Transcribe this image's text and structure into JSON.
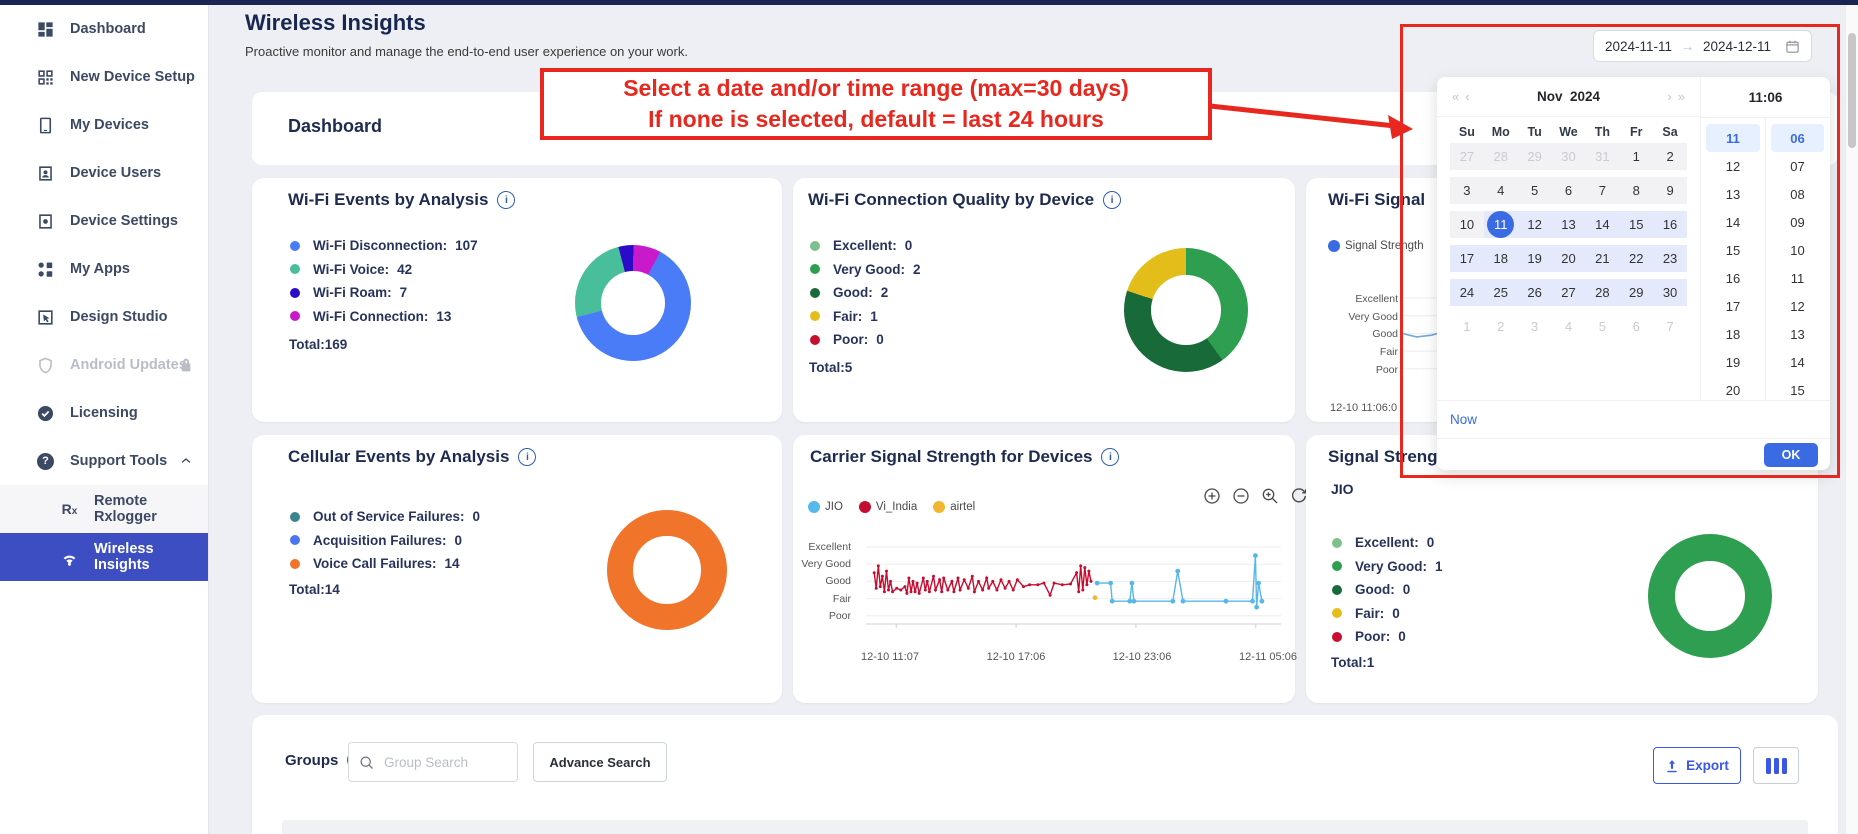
{
  "header": {
    "title": "Wireless Insights",
    "subtitle": "Proactive monitor and manage the end-to-end user experience on your work.",
    "section_title": "Dashboard"
  },
  "sidebar": {
    "items": [
      {
        "label": "Dashboard",
        "icon": "dashboard-icon"
      },
      {
        "label": "New Device Setup",
        "icon": "qr-code-icon"
      },
      {
        "label": "My Devices",
        "icon": "phone-icon"
      },
      {
        "label": "Device Users",
        "icon": "user-card-icon"
      },
      {
        "label": "Device Settings",
        "icon": "device-gear-icon"
      },
      {
        "label": "My Apps",
        "icon": "apps-icon"
      },
      {
        "label": "Design Studio",
        "icon": "design-cursor-icon"
      },
      {
        "label": "Android Updates",
        "icon": "shield-icon",
        "disabled": true,
        "lock": true
      },
      {
        "label": "Licensing",
        "icon": "license-badge-icon"
      },
      {
        "label": "Support Tools",
        "icon": "help-circle-icon",
        "expanded": true
      },
      {
        "label": "Remote Rxlogger",
        "icon": "rx-icon",
        "child": true
      },
      {
        "label": "Wireless Insights",
        "icon": "wifi-icon",
        "child": true,
        "selected": true
      }
    ]
  },
  "annotation": {
    "line1": "Select a date and/or time range (max=30 days)",
    "line2": "If none is selected, default = last 24 hours"
  },
  "date_input": {
    "start": "2024-11-11",
    "arrow": "→",
    "end": "2024-12-11"
  },
  "date_picker": {
    "nav": {
      "prev_year": "«",
      "prev_month": "‹",
      "next_month": "›",
      "next_year": "»"
    },
    "month": "Nov",
    "year": "2024",
    "time_header": "11:06",
    "day_names": [
      "Su",
      "Mo",
      "Tu",
      "We",
      "Th",
      "Fr",
      "Sa"
    ],
    "weeks": [
      [
        {
          "d": "27",
          "s": "prev"
        },
        {
          "d": "28",
          "s": "prev"
        },
        {
          "d": "29",
          "s": "prev"
        },
        {
          "d": "30",
          "s": "prev"
        },
        {
          "d": "31",
          "s": "prev"
        },
        {
          "d": "1",
          "s": "gray"
        },
        {
          "d": "2",
          "s": "gray"
        }
      ],
      [
        {
          "d": "3",
          "s": "gray"
        },
        {
          "d": "4",
          "s": "gray"
        },
        {
          "d": "5",
          "s": "gray"
        },
        {
          "d": "6",
          "s": "gray"
        },
        {
          "d": "7",
          "s": "gray"
        },
        {
          "d": "8",
          "s": "gray"
        },
        {
          "d": "9",
          "s": "gray"
        }
      ],
      [
        {
          "d": "10",
          "s": "gray"
        },
        {
          "d": "11",
          "s": "sel"
        },
        {
          "d": "12",
          "s": "range"
        },
        {
          "d": "13",
          "s": "range"
        },
        {
          "d": "14",
          "s": "range"
        },
        {
          "d": "15",
          "s": "range"
        },
        {
          "d": "16",
          "s": "range"
        }
      ],
      [
        {
          "d": "17",
          "s": "range"
        },
        {
          "d": "18",
          "s": "range"
        },
        {
          "d": "19",
          "s": "range"
        },
        {
          "d": "20",
          "s": "range"
        },
        {
          "d": "21",
          "s": "range"
        },
        {
          "d": "22",
          "s": "range"
        },
        {
          "d": "23",
          "s": "range"
        }
      ],
      [
        {
          "d": "24",
          "s": "range"
        },
        {
          "d": "25",
          "s": "range"
        },
        {
          "d": "26",
          "s": "range"
        },
        {
          "d": "27",
          "s": "range"
        },
        {
          "d": "28",
          "s": "range"
        },
        {
          "d": "29",
          "s": "range"
        },
        {
          "d": "30",
          "s": "range"
        }
      ],
      [
        {
          "d": "1",
          "s": "next"
        },
        {
          "d": "2",
          "s": "next"
        },
        {
          "d": "3",
          "s": "next"
        },
        {
          "d": "4",
          "s": "next"
        },
        {
          "d": "5",
          "s": "next"
        },
        {
          "d": "6",
          "s": "next"
        },
        {
          "d": "7",
          "s": "next"
        }
      ]
    ],
    "hours": [
      "11",
      "12",
      "13",
      "14",
      "15",
      "16",
      "17",
      "18",
      "19",
      "20"
    ],
    "minutes": [
      "06",
      "07",
      "08",
      "09",
      "10",
      "11",
      "12",
      "13",
      "14",
      "15"
    ],
    "selected_hour": "11",
    "selected_minute": "06",
    "now_label": "Now",
    "ok_label": "OK"
  },
  "groups": {
    "title": "Groups",
    "search_placeholder": "Group Search",
    "advance_button_label": "Advance Search",
    "export_button_label": "Export"
  },
  "chart_data": [
    {
      "id": "wifi-events-by-analysis",
      "type": "pie",
      "donut": true,
      "title": "Wi-Fi Events by Analysis",
      "total": 169,
      "total_label": "Total:169",
      "rotation": 28,
      "segments": [
        {
          "label": "Wi-Fi Disconnection",
          "value": 107,
          "color": "#4a7cf7"
        },
        {
          "label": "Wi-Fi Voice",
          "value": 42,
          "color": "#49be9b"
        },
        {
          "label": "Wi-Fi Roam",
          "value": 7,
          "color": "#2b0ac9"
        },
        {
          "label": "Wi-Fi Connection",
          "value": 13,
          "color": "#c81acb"
        }
      ]
    },
    {
      "id": "wifi-connection-quality-by-device",
      "type": "pie",
      "donut": true,
      "title": "Wi-Fi Connection Quality by Device",
      "total": 5,
      "total_label": "Total:5",
      "rotation": 0,
      "segments": [
        {
          "label": "Excellent",
          "value": 0,
          "color": "#7cc08b"
        },
        {
          "label": "Very Good",
          "value": 2,
          "color": "#2e9e50"
        },
        {
          "label": "Good",
          "value": 2,
          "color": "#186a38"
        },
        {
          "label": "Fair",
          "value": 1,
          "color": "#e3be1a"
        },
        {
          "label": "Poor",
          "value": 0,
          "color": "#c8102e"
        }
      ]
    },
    {
      "id": "wifi-signal",
      "type": "line",
      "title": "Wi-Fi Signal",
      "legend": [
        {
          "label": "Signal Strength",
          "color": "#3a6be2"
        }
      ],
      "y_ticks": [
        "Excellent",
        "Very Good",
        "Good",
        "Fair",
        "Poor"
      ],
      "x_ticks": [
        "12-10 11:06:0"
      ],
      "series": [
        {
          "name": "Signal Strength",
          "color": "#6fa8dc",
          "points": [
            [
              0,
              3.0
            ],
            [
              0.35,
              2.8
            ],
            [
              0.7,
              2.9
            ],
            [
              1,
              3.1
            ]
          ]
        }
      ]
    },
    {
      "id": "cellular-events-by-analysis",
      "type": "pie",
      "donut": true,
      "title": "Cellular Events by Analysis",
      "total": 14,
      "total_label": "Total:14",
      "rotation": 0,
      "segments": [
        {
          "label": "Out of Service Failures",
          "value": 0,
          "color": "#39868f"
        },
        {
          "label": "Acquisition Failures",
          "value": 0,
          "color": "#4b74f0"
        },
        {
          "label": "Voice Call Failures",
          "value": 14,
          "color": "#f0752b"
        }
      ]
    },
    {
      "id": "carrier-signal-strength-for-devices",
      "type": "line",
      "title": "Carrier Signal Strength for Devices",
      "legend": [
        {
          "label": "JIO",
          "color": "#56b8e6"
        },
        {
          "label": "Vi_India",
          "color": "#c60c30"
        },
        {
          "label": "airtel",
          "color": "#f3b72f"
        }
      ],
      "y_ticks": [
        "Excellent",
        "Very Good",
        "Good",
        "Fair",
        "Poor"
      ],
      "x_ticks": [
        "12-10 11:07",
        "12-10 17:06",
        "12-10 23:06",
        "12-11 05:06"
      ],
      "series": [
        {
          "name": "Vi_India",
          "color": "#c60c30",
          "points": [
            [
              0.02,
              3.5
            ],
            [
              0.025,
              2.6
            ],
            [
              0.03,
              3.9
            ],
            [
              0.035,
              2.7
            ],
            [
              0.04,
              3.3
            ],
            [
              0.045,
              2.4
            ],
            [
              0.05,
              3.6
            ],
            [
              0.055,
              2.5
            ],
            [
              0.06,
              3.0
            ],
            [
              0.065,
              2.4
            ],
            [
              0.075,
              2.6
            ],
            [
              0.085,
              2.5
            ],
            [
              0.095,
              2.7
            ],
            [
              0.1,
              2.3
            ],
            [
              0.105,
              3.2
            ],
            [
              0.11,
              2.4
            ],
            [
              0.115,
              3.0
            ],
            [
              0.12,
              2.4
            ],
            [
              0.125,
              2.9
            ],
            [
              0.13,
              2.3
            ],
            [
              0.14,
              3.2
            ],
            [
              0.145,
              2.5
            ],
            [
              0.15,
              3.0
            ],
            [
              0.155,
              2.4
            ],
            [
              0.165,
              3.3
            ],
            [
              0.17,
              2.5
            ],
            [
              0.18,
              3.1
            ],
            [
              0.185,
              2.4
            ],
            [
              0.19,
              3.2
            ],
            [
              0.2,
              2.5
            ],
            [
              0.21,
              3.0
            ],
            [
              0.215,
              2.4
            ],
            [
              0.225,
              3.2
            ],
            [
              0.23,
              2.5
            ],
            [
              0.24,
              3.1
            ],
            [
              0.25,
              2.6
            ],
            [
              0.26,
              3.3
            ],
            [
              0.265,
              2.4
            ],
            [
              0.275,
              3.0
            ],
            [
              0.285,
              2.5
            ],
            [
              0.295,
              3.2
            ],
            [
              0.3,
              2.6
            ],
            [
              0.31,
              3.0
            ],
            [
              0.32,
              2.5
            ],
            [
              0.33,
              3.1
            ],
            [
              0.34,
              2.6
            ],
            [
              0.35,
              3.0
            ],
            [
              0.36,
              2.5
            ],
            [
              0.37,
              3.1
            ],
            [
              0.385,
              2.7
            ],
            [
              0.4,
              2.8
            ],
            [
              0.42,
              2.8
            ],
            [
              0.435,
              2.9
            ],
            [
              0.45,
              2.2
            ],
            [
              0.46,
              2.9
            ],
            [
              0.48,
              2.8
            ],
            [
              0.5,
              2.85
            ],
            [
              0.515,
              3.5
            ],
            [
              0.52,
              2.4
            ],
            [
              0.525,
              3.9
            ],
            [
              0.53,
              2.5
            ],
            [
              0.535,
              3.8
            ],
            [
              0.54,
              2.8
            ],
            [
              0.545,
              3.6
            ],
            [
              0.55,
              3.0
            ]
          ]
        },
        {
          "name": "JIO",
          "color": "#56b8e6",
          "points": [
            [
              0.565,
              2.9
            ],
            [
              0.598,
              2.9
            ],
            [
              0.602,
              1.85
            ],
            [
              0.645,
              1.85
            ],
            [
              0.65,
              2.9
            ],
            [
              0.655,
              1.85
            ],
            [
              0.75,
              1.85
            ],
            [
              0.762,
              3.6
            ],
            [
              0.775,
              1.85
            ],
            [
              0.88,
              1.85
            ],
            [
              0.945,
              1.85
            ],
            [
              0.952,
              4.5
            ],
            [
              0.955,
              1.5
            ],
            [
              0.96,
              2.9
            ],
            [
              0.968,
              1.85
            ]
          ]
        },
        {
          "name": "airtel",
          "color": "#f3b72f",
          "points": [
            [
              0.56,
              2.05
            ]
          ]
        }
      ]
    },
    {
      "id": "signal-strength",
      "type": "pie",
      "donut": true,
      "title": "Signal Strength",
      "subtitle": "JIO",
      "total": 1,
      "total_label": "Total:1",
      "rotation": 0,
      "segments": [
        {
          "label": "Excellent",
          "value": 0,
          "color": "#7cc08b"
        },
        {
          "label": "Very Good",
          "value": 1,
          "color": "#2e9e50"
        },
        {
          "label": "Good",
          "value": 0,
          "color": "#186a38"
        },
        {
          "label": "Fair",
          "value": 0,
          "color": "#e3be1a"
        },
        {
          "label": "Poor",
          "value": 0,
          "color": "#c8102e"
        }
      ]
    }
  ]
}
